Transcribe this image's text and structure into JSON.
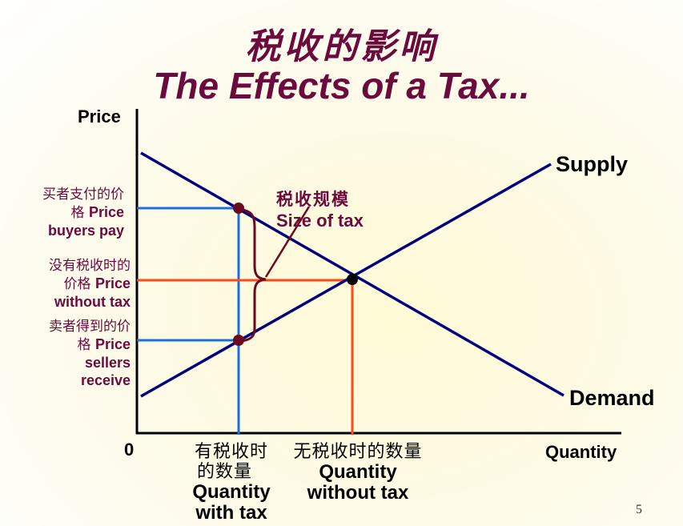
{
  "title": {
    "chinese": "税收的影响",
    "english": "The Effects of a Tax..."
  },
  "axes": {
    "y_label": "Price",
    "x_label": "Quantity",
    "origin": "0"
  },
  "curves": {
    "supply": "Supply",
    "demand": "Demand"
  },
  "price_labels": {
    "buyers_pay": {
      "cn": "买者支付的价格",
      "cn_line1": "买者支付的价",
      "cn_line2": "格",
      "en_line1": "Price",
      "en_line2": "buyers pay"
    },
    "without_tax": {
      "cn_line1": "没有税收时的",
      "cn_line2": "价格",
      "en_line1": "Price",
      "en_line2": "without tax"
    },
    "sellers_receive": {
      "cn_line1": "卖者得到的价",
      "cn_line2": "格",
      "en_line1": "Price",
      "en_line2": "sellers",
      "en_line3": "receive"
    }
  },
  "tax_label": {
    "cn": "税收规模",
    "en": "Size of tax"
  },
  "quantity_labels": {
    "with_tax": {
      "cn_line1": "有税收时",
      "cn_line2": "的数量",
      "en_line1": "Quantity",
      "en_line2": "with tax"
    },
    "without_tax": {
      "cn_line1": "无税收时的数量",
      "en_line1": "Quantity",
      "en_line2": "without tax"
    }
  },
  "page_number": "5",
  "colors": {
    "title": "#6b0a3c",
    "curves": "#000080",
    "tax_guides": "#1a6fe0",
    "equilibrium_guides": "#ff4a1a",
    "points": "#6b0a1e",
    "brace": "#6b0a1e"
  }
}
